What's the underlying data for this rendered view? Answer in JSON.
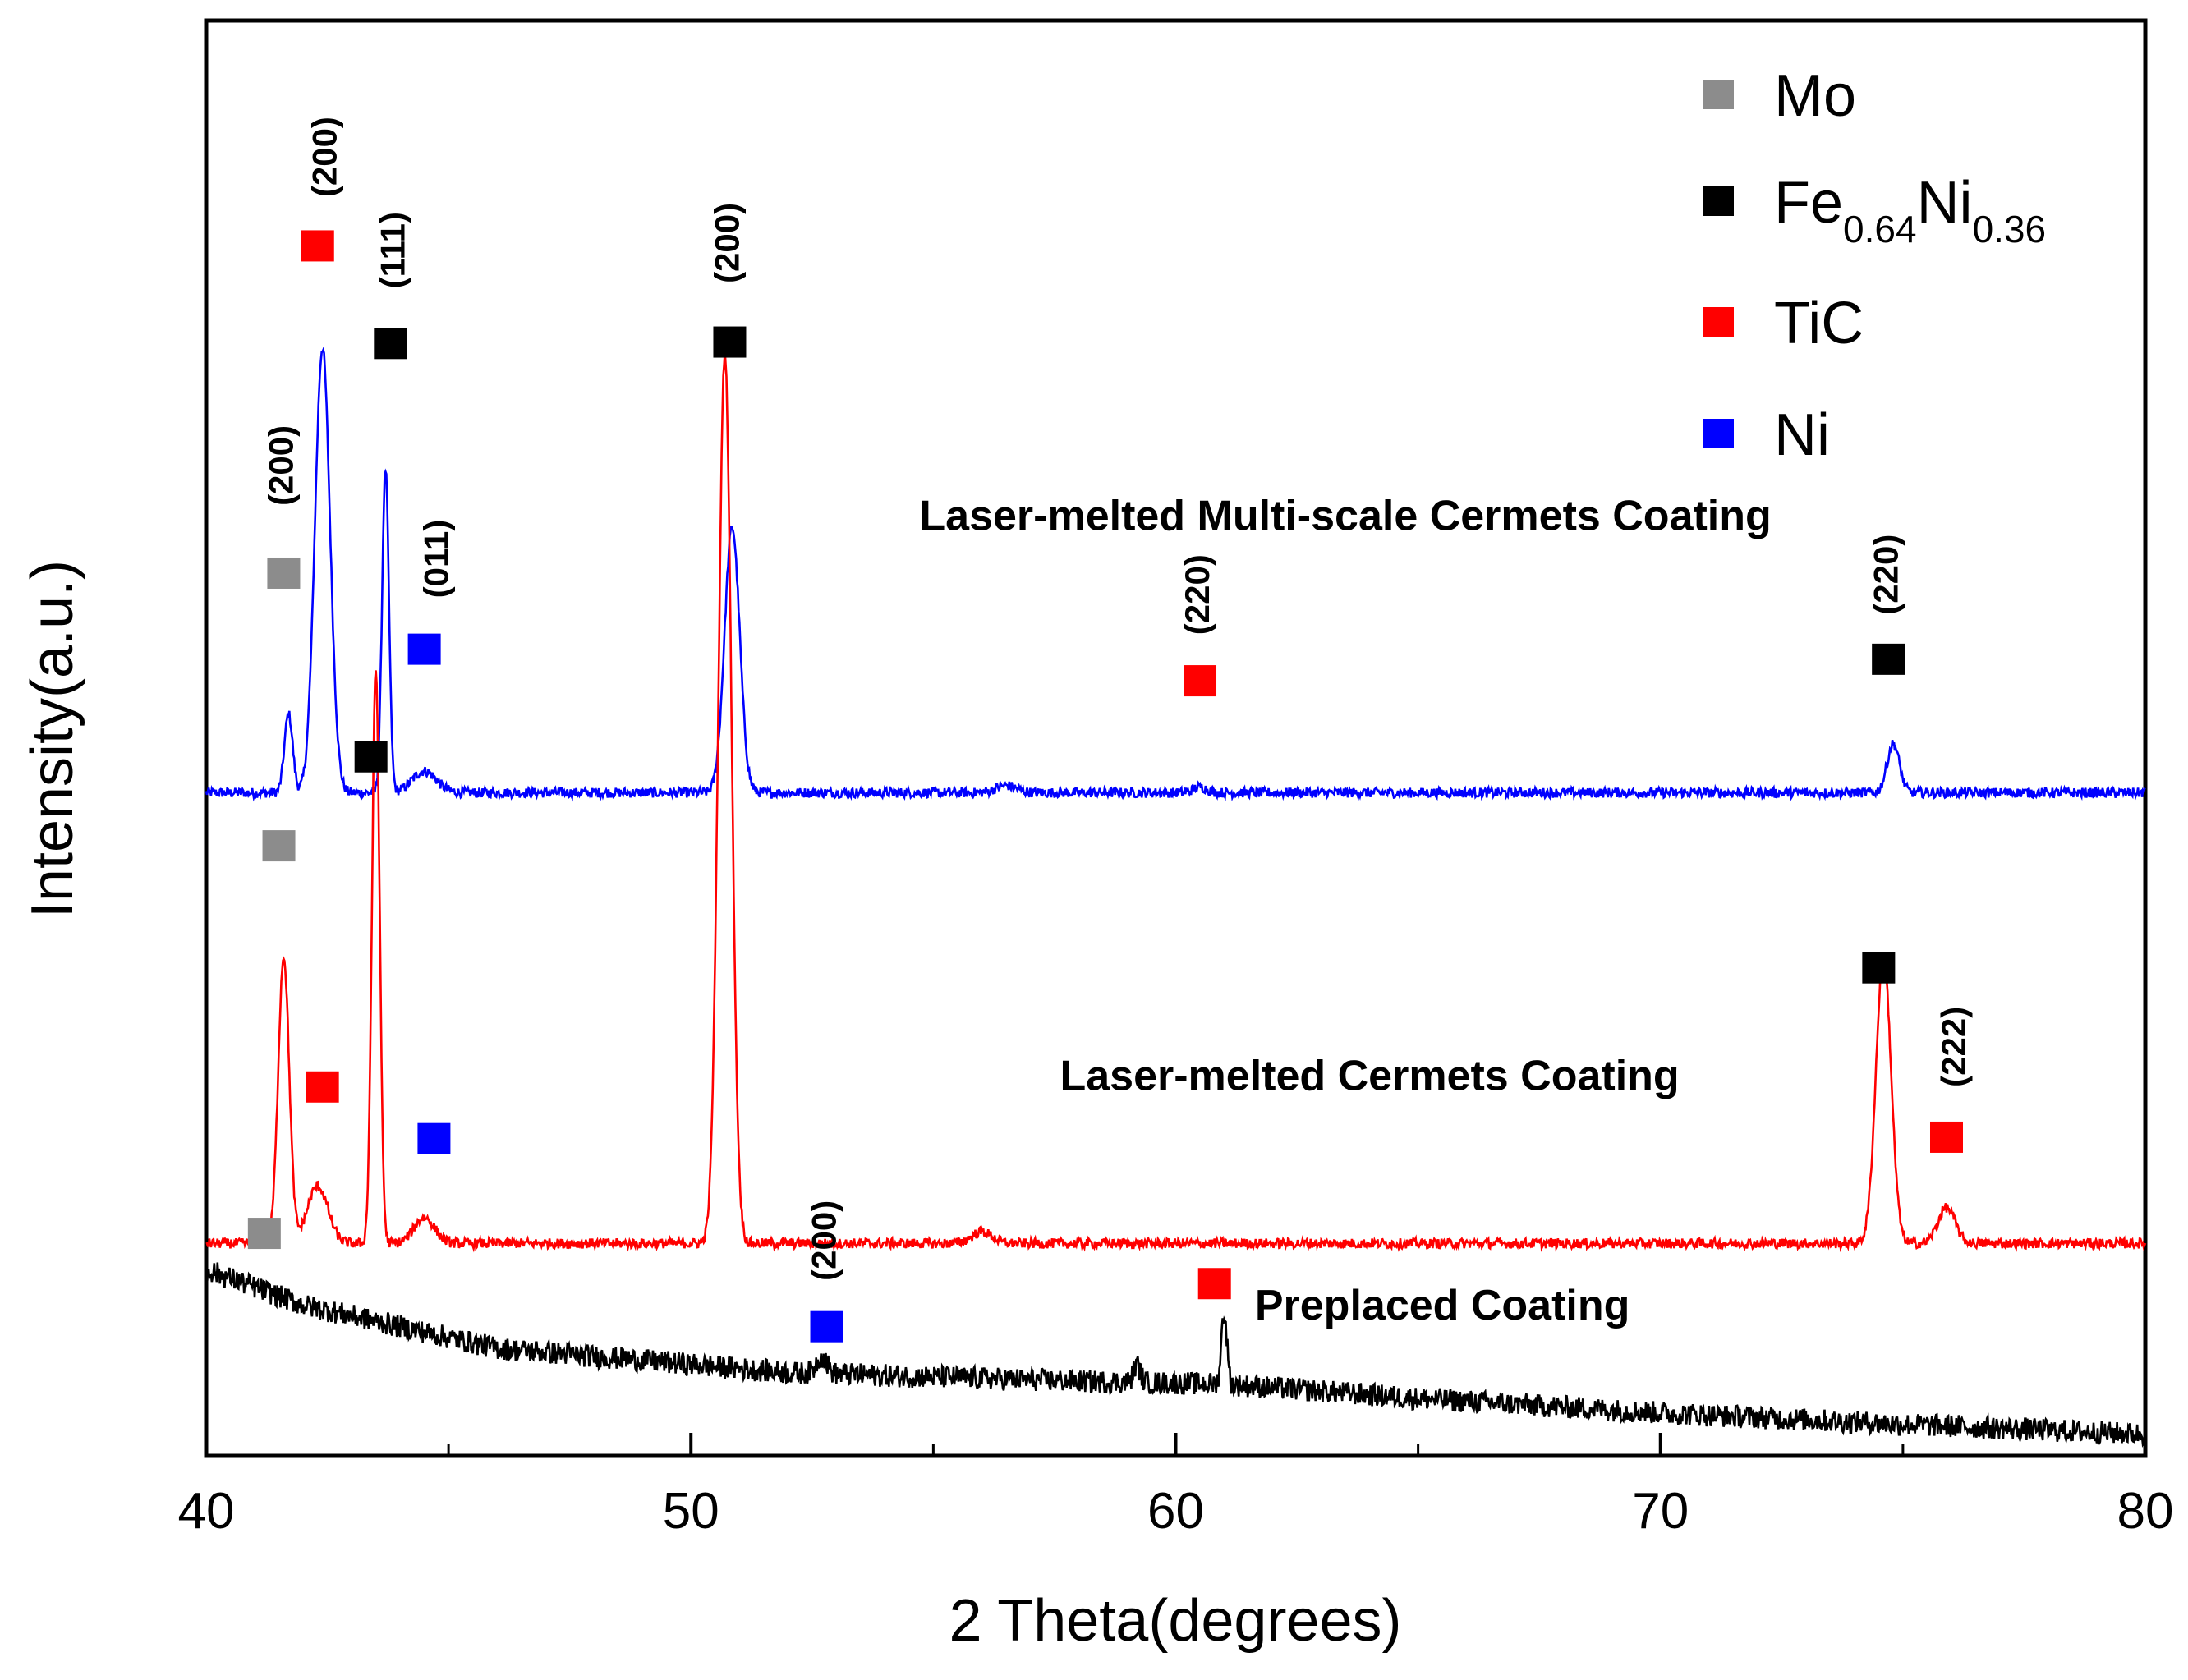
{
  "chart_data": {
    "type": "line",
    "title": "",
    "xlabel": "2 Theta(degrees)",
    "ylabel": "Intensity(a.u.)",
    "xlim": [
      40,
      80
    ],
    "xticks": [
      40,
      50,
      60,
      70,
      80
    ],
    "yticks_shown": false,
    "colors": {
      "Mo": "#8c8c8c",
      "FeNi": "#000000",
      "TiC": "#ff0000",
      "Ni": "#0000ff"
    },
    "legend": [
      {
        "key": "Mo",
        "label": "Mo"
      },
      {
        "key": "FeNi",
        "label": "Fe",
        "sub1": "0.64",
        "mid": "Ni",
        "sub2": "0.36"
      },
      {
        "key": "TiC",
        "label": "TiC"
      },
      {
        "key": "Ni",
        "label": "Ni"
      }
    ],
    "series": [
      {
        "name": "Laser-melted Multi-scale  Cermets Coating",
        "color": "#0000ff",
        "baseline": 0.462,
        "noise": 0.0035,
        "peaks": [
          [
            41.7,
            0.055,
            0.12
          ],
          [
            42.4,
            0.31,
            0.22
          ],
          [
            43.7,
            0.225,
            0.1
          ],
          [
            44.5,
            0.015,
            0.35
          ],
          [
            50.85,
            0.185,
            0.22
          ],
          [
            56.5,
            0.005,
            0.3
          ],
          [
            60.5,
            0.004,
            0.2
          ],
          [
            74.8,
            0.034,
            0.18
          ]
        ],
        "markers": [
          {
            "phase": "Mo",
            "x": 41.6,
            "y": 0.615,
            "hkl": "(200)",
            "hkl_x": 41.6,
            "hkl_y": 0.69
          },
          {
            "phase": "TiC",
            "x": 42.3,
            "y": 0.843,
            "hkl": "(200)",
            "hkl_x": 42.5,
            "hkl_y": 0.905
          },
          {
            "phase": "FeNi",
            "x": 43.8,
            "y": 0.775,
            "hkl": "(111)",
            "hkl_x": 43.9,
            "hkl_y": 0.84
          },
          {
            "phase": "Ni",
            "x": 44.5,
            "y": 0.562,
            "hkl": "(011)",
            "hkl_x": 44.8,
            "hkl_y": 0.625
          },
          {
            "phase": "FeNi",
            "x": 50.8,
            "y": 0.776,
            "hkl": "(200)",
            "hkl_x": 50.8,
            "hkl_y": 0.845
          },
          {
            "phase": "TiC",
            "x": 60.5,
            "y": 0.54,
            "hkl": "(220)",
            "hkl_x": 60.5,
            "hkl_y": 0.6
          },
          {
            "phase": "FeNi",
            "x": 74.7,
            "y": 0.555,
            "hkl": "(220)",
            "hkl_x": 74.7,
            "hkl_y": 0.614
          }
        ],
        "label_x": 63.5,
        "label_y": 0.645
      },
      {
        "name": "Laser-melted Cermets Coating",
        "color": "#ff0000",
        "baseline": 0.148,
        "noise": 0.0035,
        "peaks": [
          [
            41.6,
            0.2,
            0.16
          ],
          [
            42.3,
            0.04,
            0.3
          ],
          [
            43.5,
            0.4,
            0.11
          ],
          [
            44.5,
            0.018,
            0.3
          ],
          [
            50.7,
            0.62,
            0.19
          ],
          [
            56.0,
            0.008,
            0.3
          ],
          [
            74.6,
            0.2,
            0.22
          ],
          [
            75.9,
            0.025,
            0.25
          ]
        ],
        "markers": [
          {
            "phase": "FeNi",
            "x": 43.4,
            "y": 0.487
          },
          {
            "phase": "Mo",
            "x": 41.5,
            "y": 0.425
          },
          {
            "phase": "TiC",
            "x": 42.4,
            "y": 0.257
          },
          {
            "phase": "Ni",
            "x": 44.7,
            "y": 0.221
          },
          {
            "phase": "FeNi",
            "x": 74.5,
            "y": 0.34
          },
          {
            "phase": "TiC",
            "x": 75.9,
            "y": 0.222,
            "hkl": "(222)",
            "hkl_x": 76.1,
            "hkl_y": 0.285
          }
        ],
        "label_x": 64.0,
        "label_y": 0.255
      },
      {
        "name": "Preplaced Coating",
        "color": "#000000",
        "baseline": 0.0,
        "noise": 0.008,
        "curve": [
          [
            40,
            0.13
          ],
          [
            42,
            0.105
          ],
          [
            46,
            0.075
          ],
          [
            52,
            0.058
          ],
          [
            58,
            0.052
          ],
          [
            61,
            0.05
          ],
          [
            65,
            0.04
          ],
          [
            70,
            0.03
          ],
          [
            75,
            0.022
          ],
          [
            80,
            0.015
          ]
        ],
        "peaks": [
          [
            61.0,
            0.05,
            0.08
          ],
          [
            52.7,
            0.012,
            0.15
          ],
          [
            59.2,
            0.012,
            0.1
          ]
        ],
        "markers": [
          {
            "phase": "Mo",
            "x": 41.2,
            "y": 0.155
          },
          {
            "phase": "Ni",
            "x": 52.8,
            "y": 0.09,
            "hkl": "(200)",
            "hkl_x": 52.8,
            "hkl_y": 0.15
          },
          {
            "phase": "TiC",
            "x": 60.8,
            "y": 0.12
          }
        ],
        "label_x": 65.5,
        "label_y": 0.095
      }
    ]
  }
}
